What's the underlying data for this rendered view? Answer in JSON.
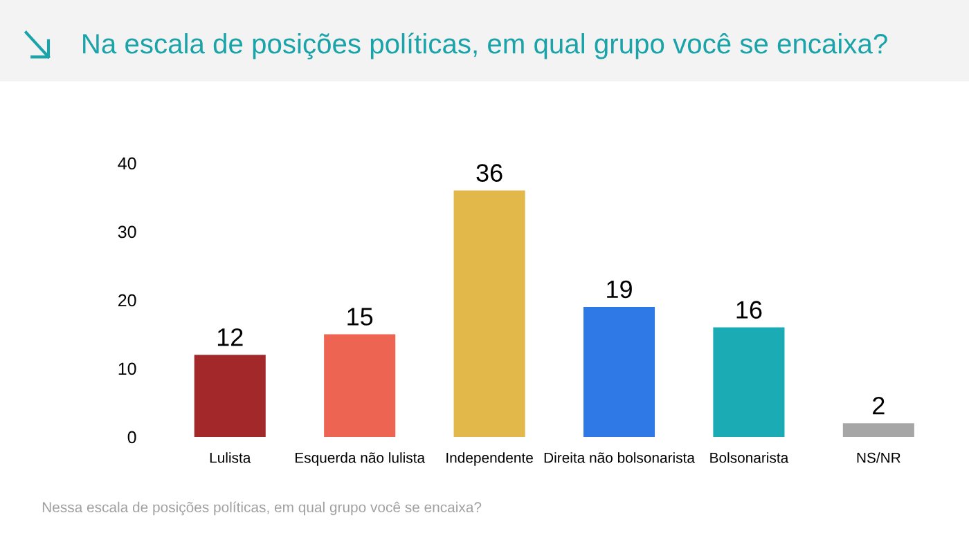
{
  "chart_data": {
    "type": "bar",
    "title": "Na escala de posições políticas, em qual grupo você se encaixa?",
    "categories": [
      "Lulista",
      "Esquerda não lulista",
      "Independente",
      "Direita não bolsonarista",
      "Bolsonarista",
      "NS/NR"
    ],
    "values": [
      12,
      15,
      36,
      19,
      16,
      2
    ],
    "colors": [
      "#a3282a",
      "#ee6452",
      "#e2b84b",
      "#2e79e6",
      "#1aabb4",
      "#a6a6a6"
    ],
    "ylim": [
      0,
      40
    ],
    "yticks": [
      0,
      10,
      20,
      30,
      40
    ],
    "grid": false,
    "data_labels": true,
    "annotations": [
      "Nessa escala de posições políticas, em qual grupo você se encaixa?"
    ]
  }
}
